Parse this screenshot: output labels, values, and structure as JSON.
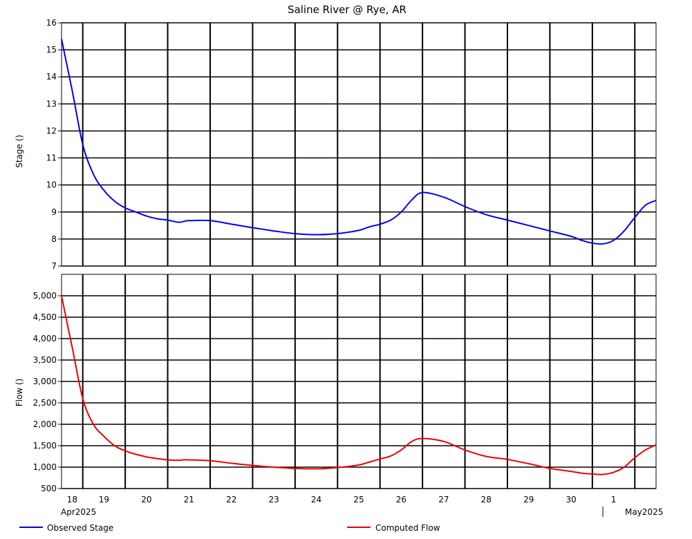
{
  "chart_data": {
    "type": "line",
    "title": "Saline River @ Rye, AR",
    "colors": {
      "stage": "#0000ee",
      "flow": "#ee0000",
      "grid": "#000000"
    },
    "x_axis": {
      "day_labels": [
        "18",
        "19",
        "20",
        "21",
        "22",
        "23",
        "24",
        "25",
        "26",
        "27",
        "28",
        "29",
        "30",
        "1"
      ],
      "month_labels": [
        "Apr2025",
        "May2025"
      ]
    },
    "panels": [
      {
        "id": "stage",
        "ylabel": "Stage ()",
        "ylim": [
          7,
          16
        ],
        "yticks": [
          7,
          8,
          9,
          10,
          11,
          12,
          13,
          14,
          15,
          16
        ],
        "ytick_labels": [
          "7",
          "8",
          "9",
          "10",
          "11",
          "12",
          "13",
          "14",
          "15",
          "16"
        ],
        "series": [
          {
            "name": "Observed Stage",
            "x": [
              "2025-04-18 00:00",
              "2025-04-18 06:00",
              "2025-04-18 12:00",
              "2025-04-18 18:00",
              "2025-04-19 00:00",
              "2025-04-19 06:00",
              "2025-04-19 12:00",
              "2025-04-19 18:00",
              "2025-04-20 00:00",
              "2025-04-20 06:00",
              "2025-04-20 12:00",
              "2025-04-20 18:00",
              "2025-04-20 21:00",
              "2025-04-21 00:00",
              "2025-04-21 12:00",
              "2025-04-22 00:00",
              "2025-04-22 12:00",
              "2025-04-23 00:00",
              "2025-04-23 12:00",
              "2025-04-24 00:00",
              "2025-04-24 12:00",
              "2025-04-25 00:00",
              "2025-04-25 06:00",
              "2025-04-25 12:00",
              "2025-04-25 18:00",
              "2025-04-26 00:00",
              "2025-04-26 06:00",
              "2025-04-26 12:00",
              "2025-04-27 00:00",
              "2025-04-27 12:00",
              "2025-04-28 00:00",
              "2025-04-28 12:00",
              "2025-04-29 00:00",
              "2025-04-29 12:00",
              "2025-04-30 00:00",
              "2025-04-30 06:00",
              "2025-04-30 12:00",
              "2025-04-30 18:00",
              "2025-05-01 00:00",
              "2025-05-01 06:00",
              "2025-05-01 12:00",
              "2025-05-01 18:00",
              "2025-05-02 00:00"
            ],
            "y": [
              15.4,
              13.5,
              11.5,
              10.4,
              9.8,
              9.4,
              9.15,
              9.0,
              8.85,
              8.75,
              8.7,
              8.62,
              8.65,
              8.68,
              8.68,
              8.55,
              8.42,
              8.3,
              8.2,
              8.16,
              8.2,
              8.32,
              8.45,
              8.55,
              8.7,
              9.0,
              9.45,
              9.72,
              9.55,
              9.2,
              8.9,
              8.7,
              8.5,
              8.3,
              8.1,
              7.95,
              7.85,
              7.82,
              7.95,
              8.3,
              8.8,
              9.25,
              9.43
            ]
          }
        ]
      },
      {
        "id": "flow",
        "ylabel": "Flow ()",
        "ylim": [
          500,
          5500
        ],
        "yticks": [
          500,
          1000,
          1500,
          2000,
          2500,
          3000,
          3500,
          4000,
          4500,
          5000
        ],
        "ytick_labels": [
          "500",
          "1,000",
          "1,500",
          "2,000",
          "2,500",
          "3,000",
          "3,500",
          "4,000",
          "4,500",
          "5,000"
        ],
        "series": [
          {
            "name": "Computed Flow",
            "x": [
              "2025-04-18 00:00",
              "2025-04-18 06:00",
              "2025-04-18 12:00",
              "2025-04-18 18:00",
              "2025-04-19 00:00",
              "2025-04-19 06:00",
              "2025-04-19 12:00",
              "2025-04-19 18:00",
              "2025-04-20 00:00",
              "2025-04-20 06:00",
              "2025-04-20 12:00",
              "2025-04-20 18:00",
              "2025-04-20 21:00",
              "2025-04-21 00:00",
              "2025-04-21 12:00",
              "2025-04-22 00:00",
              "2025-04-22 12:00",
              "2025-04-23 00:00",
              "2025-04-23 12:00",
              "2025-04-24 00:00",
              "2025-04-24 12:00",
              "2025-04-25 00:00",
              "2025-04-25 06:00",
              "2025-04-25 12:00",
              "2025-04-25 18:00",
              "2025-04-26 00:00",
              "2025-04-26 06:00",
              "2025-04-26 12:00",
              "2025-04-27 00:00",
              "2025-04-27 12:00",
              "2025-04-28 00:00",
              "2025-04-28 12:00",
              "2025-04-29 00:00",
              "2025-04-29 12:00",
              "2025-04-30 00:00",
              "2025-04-30 06:00",
              "2025-04-30 12:00",
              "2025-04-30 18:00",
              "2025-05-01 00:00",
              "2025-05-01 06:00",
              "2025-05-01 12:00",
              "2025-05-01 18:00",
              "2025-05-02 00:00"
            ],
            "y": [
              5000,
              3800,
              2600,
              2000,
              1720,
              1500,
              1380,
              1300,
              1240,
              1200,
              1170,
              1160,
              1170,
              1170,
              1150,
              1090,
              1040,
              1000,
              970,
              960,
              990,
              1050,
              1120,
              1190,
              1260,
              1400,
              1600,
              1670,
              1600,
              1400,
              1250,
              1180,
              1080,
              970,
              900,
              860,
              840,
              830,
              880,
              1000,
              1220,
              1400,
              1520
            ]
          }
        ]
      }
    ]
  }
}
